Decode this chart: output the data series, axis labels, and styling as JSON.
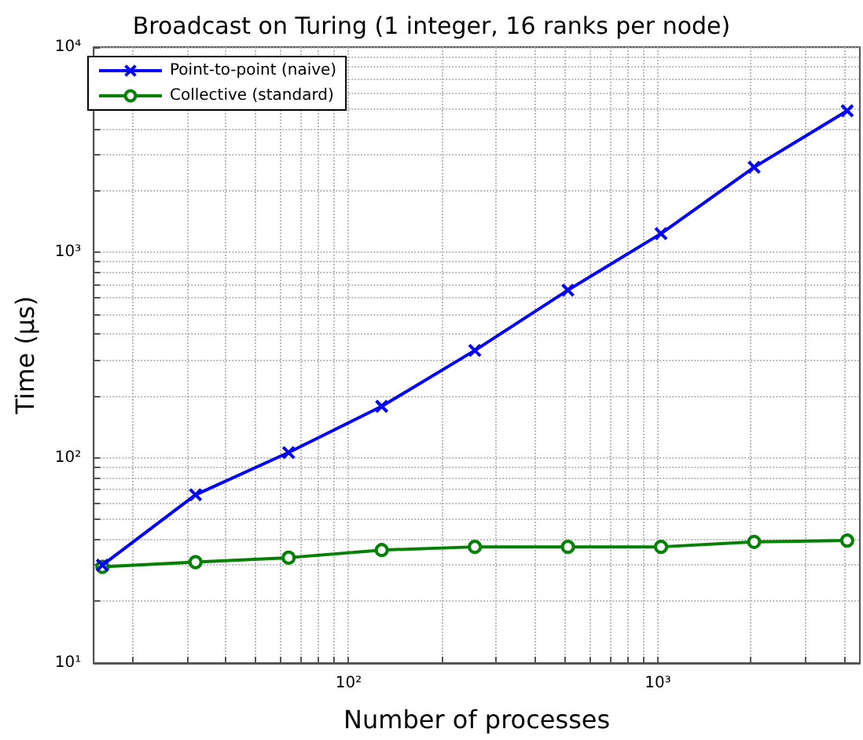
{
  "chart_data": {
    "type": "line",
    "title": "Broadcast on Turing (1 integer, 16 ranks per node)",
    "xlabel": "Number of processes",
    "ylabel": "Time (µs)",
    "x": [
      16,
      32,
      64,
      128,
      256,
      512,
      1024,
      2048,
      4096
    ],
    "series": [
      {
        "name": "Point-to-point (naive)",
        "color": "#0000ff",
        "marker": "cross",
        "values": [
          30,
          66,
          106,
          178,
          333,
          655,
          1235,
          2600,
          4900
        ]
      },
      {
        "name": "Collective (standard)",
        "color": "#008000",
        "marker": "circle",
        "values": [
          29.4,
          31,
          32.6,
          35.5,
          36.8,
          36.8,
          36.8,
          38.9,
          39.5
        ]
      }
    ],
    "log": "xy",
    "grid": true,
    "legend": "top left",
    "line_style": "solid",
    "xlim": [
      15,
      4500
    ],
    "ylim": [
      10,
      10000
    ],
    "xticks": [
      {
        "value": 20,
        "label": null
      },
      {
        "value": 30,
        "label": null
      },
      {
        "value": 40,
        "label": null
      },
      {
        "value": 50,
        "label": null
      },
      {
        "value": 60,
        "label": null
      },
      {
        "value": 70,
        "label": null
      },
      {
        "value": 80,
        "label": null
      },
      {
        "value": 90,
        "label": null
      },
      {
        "value": 100,
        "label": "10²"
      },
      {
        "value": 200,
        "label": null
      },
      {
        "value": 300,
        "label": null
      },
      {
        "value": 400,
        "label": null
      },
      {
        "value": 500,
        "label": null
      },
      {
        "value": 600,
        "label": null
      },
      {
        "value": 700,
        "label": null
      },
      {
        "value": 800,
        "label": null
      },
      {
        "value": 900,
        "label": null
      },
      {
        "value": 1000,
        "label": "10³"
      },
      {
        "value": 2000,
        "label": null
      },
      {
        "value": 3000,
        "label": null
      },
      {
        "value": 4000,
        "label": null
      }
    ],
    "yticks": [
      {
        "value": 10,
        "label": "10¹"
      },
      {
        "value": 20,
        "label": null
      },
      {
        "value": 30,
        "label": null
      },
      {
        "value": 40,
        "label": null
      },
      {
        "value": 50,
        "label": null
      },
      {
        "value": 60,
        "label": null
      },
      {
        "value": 70,
        "label": null
      },
      {
        "value": 80,
        "label": null
      },
      {
        "value": 90,
        "label": null
      },
      {
        "value": 100,
        "label": "10²"
      },
      {
        "value": 200,
        "label": null
      },
      {
        "value": 300,
        "label": null
      },
      {
        "value": 400,
        "label": null
      },
      {
        "value": 500,
        "label": null
      },
      {
        "value": 600,
        "label": null
      },
      {
        "value": 700,
        "label": null
      },
      {
        "value": 800,
        "label": null
      },
      {
        "value": 900,
        "label": null
      },
      {
        "value": 1000,
        "label": "10³"
      },
      {
        "value": 2000,
        "label": null
      },
      {
        "value": 3000,
        "label": null
      },
      {
        "value": 4000,
        "label": null
      },
      {
        "value": 5000,
        "label": null
      },
      {
        "value": 6000,
        "label": null
      },
      {
        "value": 7000,
        "label": null
      },
      {
        "value": 8000,
        "label": null
      },
      {
        "value": 9000,
        "label": null
      },
      {
        "value": 10000,
        "label": "10⁴"
      }
    ]
  }
}
